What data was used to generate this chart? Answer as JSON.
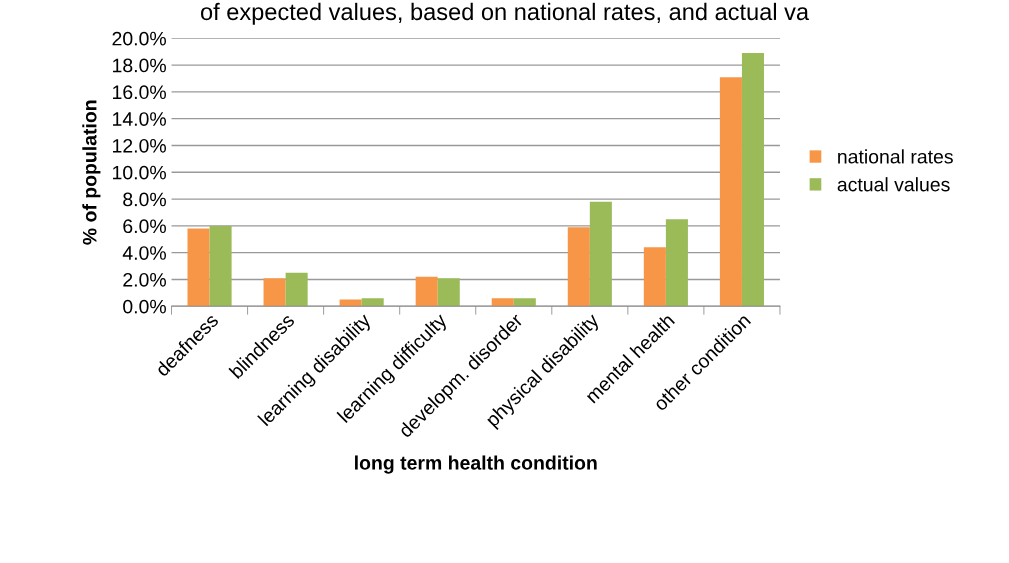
{
  "chart_data": {
    "type": "bar",
    "title": "of expected values, based on national rates, and actual va",
    "xlabel": "long term health condition",
    "ylabel": "% of population",
    "categories": [
      "deafness",
      "blindness",
      "learning disability",
      "learning difficulty",
      "developm. disorder",
      "physical disability",
      "mental health",
      "other condition"
    ],
    "series": [
      {
        "name": "national rates",
        "color": "#f79646",
        "values": [
          5.8,
          2.1,
          0.5,
          2.2,
          0.6,
          5.9,
          4.4,
          17.1
        ]
      },
      {
        "name": "actual values",
        "color": "#9bbb59",
        "values": [
          6.0,
          2.5,
          0.6,
          2.1,
          0.6,
          7.8,
          6.5,
          18.9
        ]
      }
    ],
    "ylim": [
      0,
      20
    ],
    "yticks": [
      {
        "value": 0,
        "label": "0.0%"
      },
      {
        "value": 2,
        "label": "2.0%"
      },
      {
        "value": 4,
        "label": "4.0%"
      },
      {
        "value": 6,
        "label": "6.0%"
      },
      {
        "value": 8,
        "label": "8.0%"
      },
      {
        "value": 10,
        "label": "10.0%"
      },
      {
        "value": 12,
        "label": "12.0%"
      },
      {
        "value": 14,
        "label": "14.0%"
      },
      {
        "value": 16,
        "label": "16.0%"
      },
      {
        "value": 18,
        "label": "18.0%"
      },
      {
        "value": 20,
        "label": "20.0%"
      }
    ],
    "grid": "y",
    "legend": "right"
  }
}
